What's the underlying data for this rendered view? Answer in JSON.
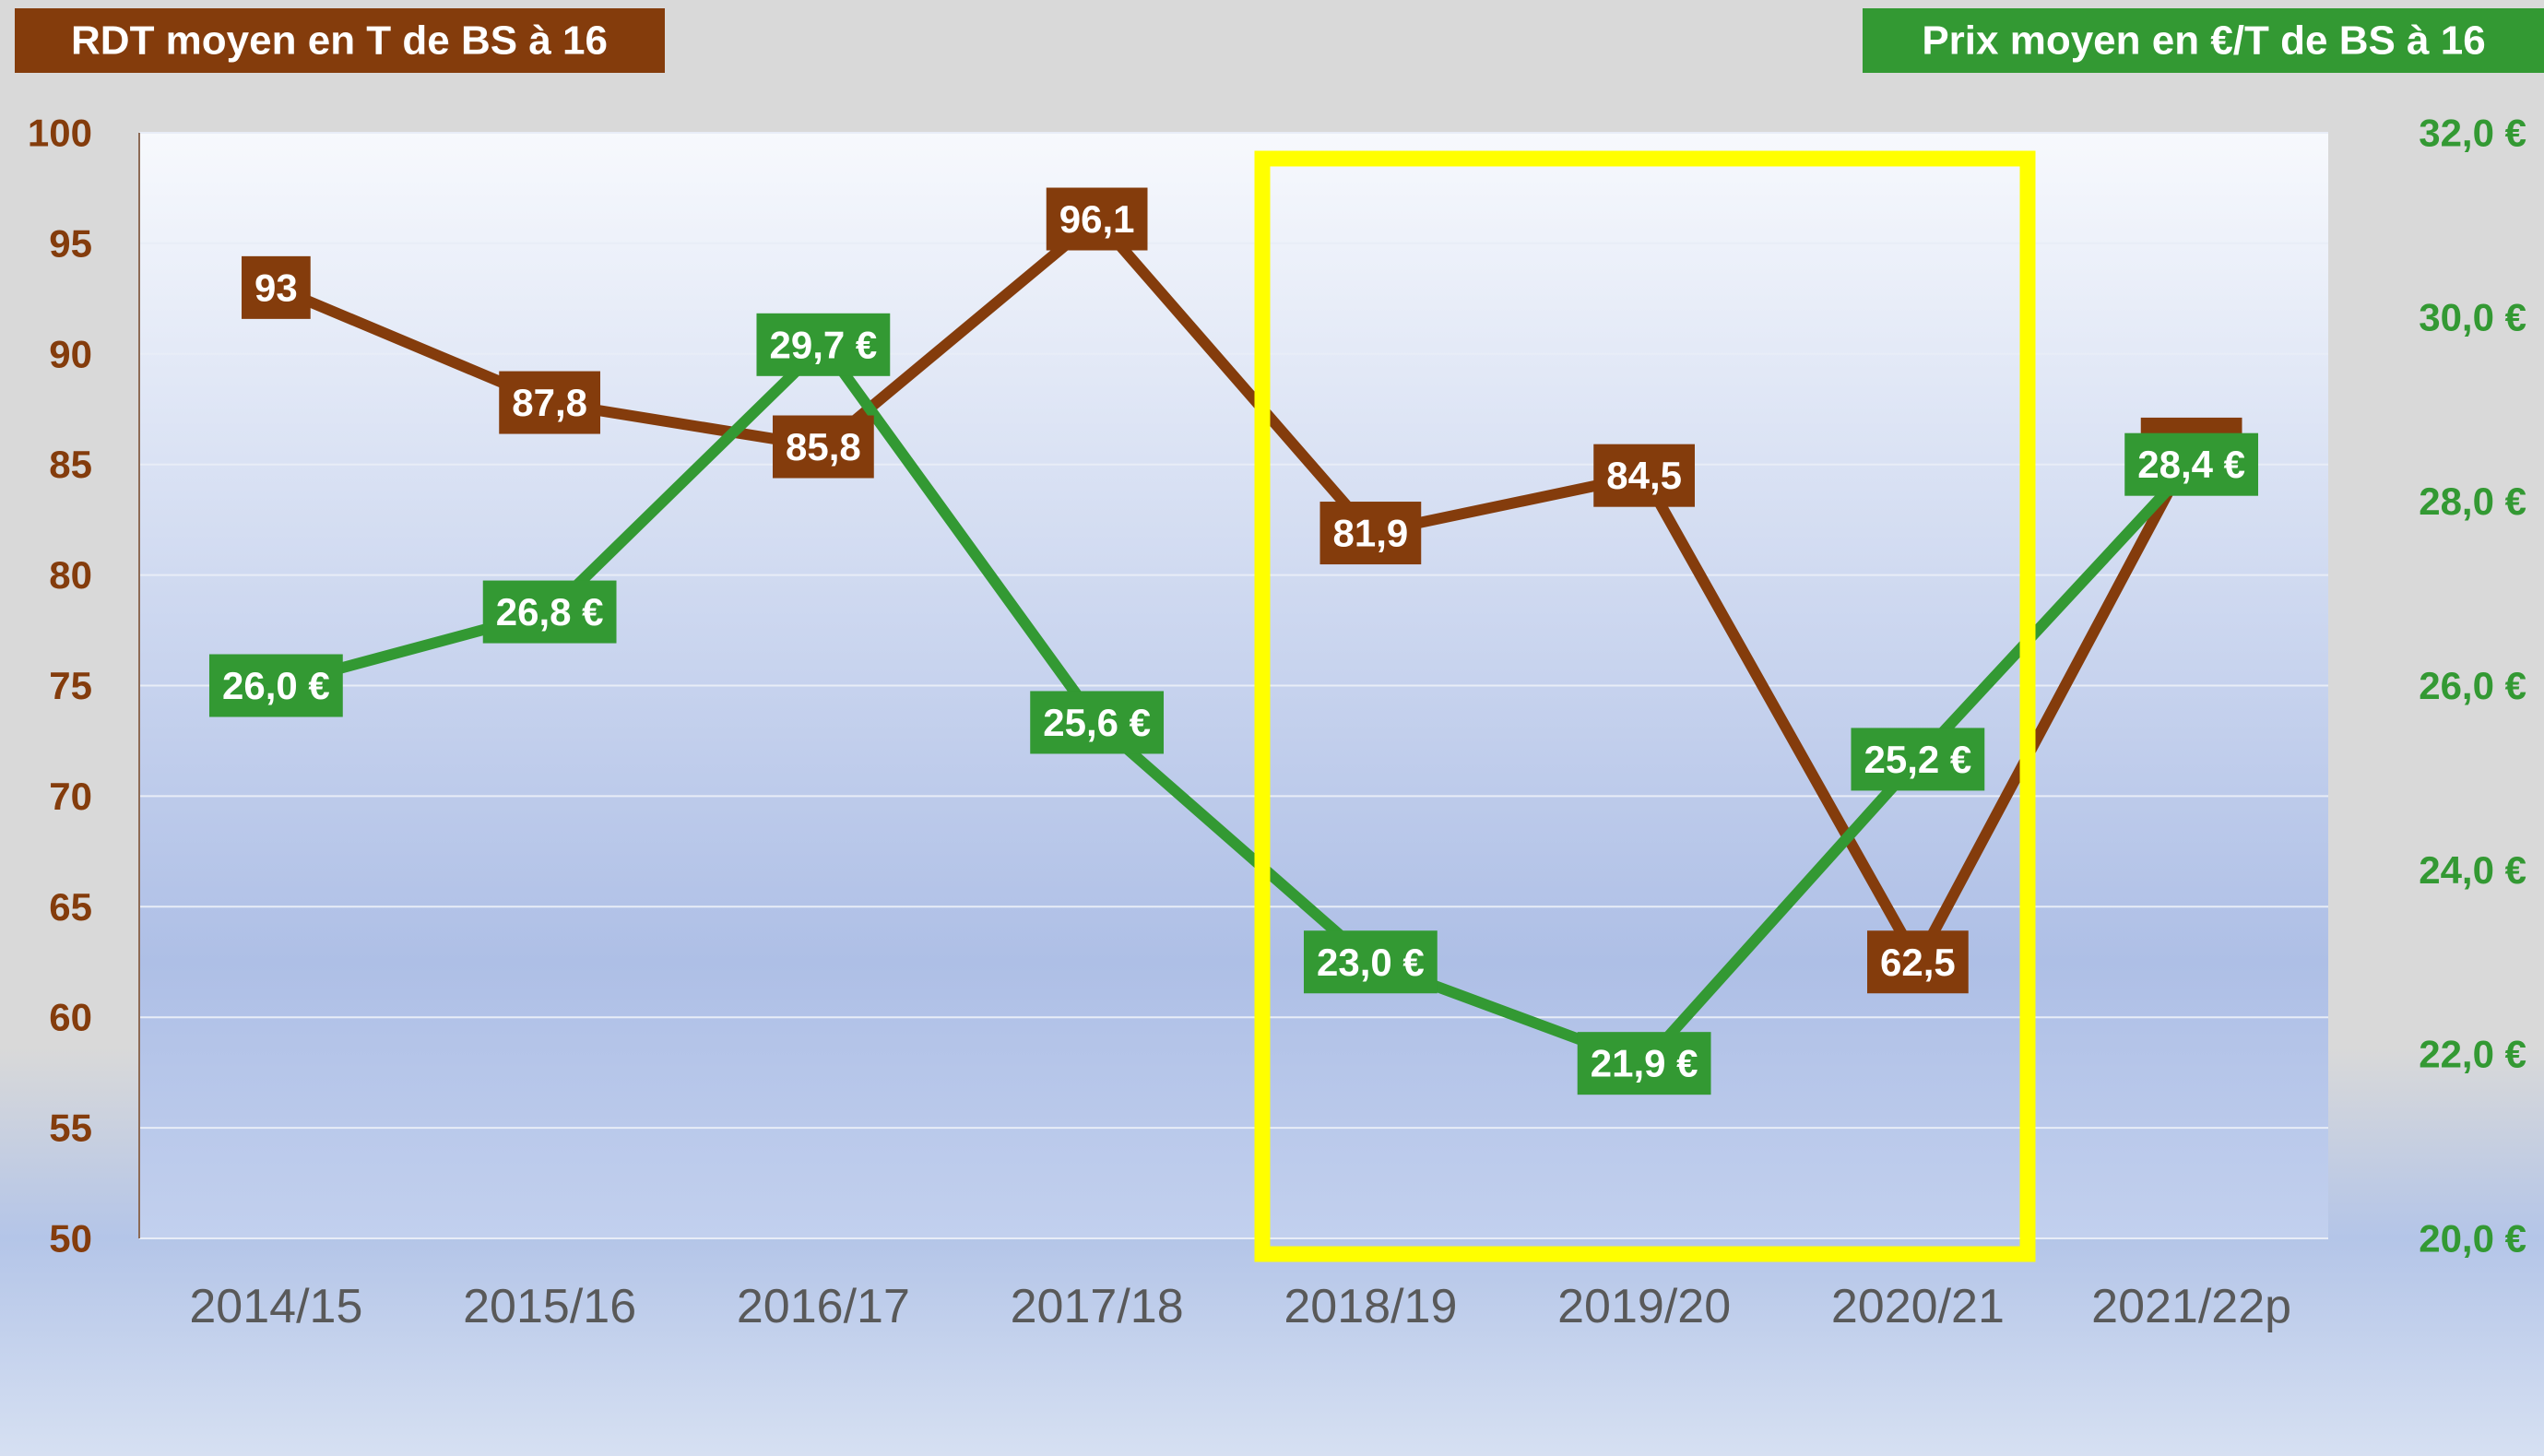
{
  "chart_data": {
    "type": "line",
    "y_label": "RDT moyen en T de BS à 16",
    "y2_label": "Prix moyen en €/T de BS à 16",
    "categories": [
      "2014/15",
      "2015/16",
      "2016/17",
      "2017/18",
      "2018/19",
      "2019/20",
      "2020/21",
      "2021/22p"
    ],
    "series": [
      {
        "name": "RDT moyen en T de BS à 16",
        "color": "#843c0c",
        "axis": "y",
        "values": [
          93,
          87.8,
          85.8,
          96.1,
          81.9,
          84.5,
          62.5,
          85.7
        ],
        "value_labels": [
          "93",
          "87,8",
          "85,8",
          "96,1",
          "81,9",
          "84,5",
          "62,5",
          "85,7"
        ]
      },
      {
        "name": "Prix moyen en €/T de BS à 16",
        "color": "#339933",
        "axis": "y2",
        "values": [
          26.0,
          26.8,
          29.7,
          25.6,
          23.0,
          21.9,
          25.2,
          28.4
        ],
        "value_labels": [
          "26,0 €",
          "26,8 €",
          "29,7 €",
          "25,6 €",
          "23,0 €",
          "21,9 €",
          "25,2 €",
          "28,4 €"
        ]
      }
    ],
    "ylim": [
      50,
      100
    ],
    "yticks": [
      50,
      55,
      60,
      65,
      70,
      75,
      80,
      85,
      90,
      95,
      100
    ],
    "y2lim": [
      20,
      32
    ],
    "y2ticks": [
      {
        "value": 20,
        "label": "20,0 €"
      },
      {
        "value": 22,
        "label": "22,0 €"
      },
      {
        "value": 24,
        "label": "24,0 €"
      },
      {
        "value": 26,
        "label": "26,0 €"
      },
      {
        "value": 28,
        "label": "28,0 €"
      },
      {
        "value": 30,
        "label": "30,0 €"
      },
      {
        "value": 32,
        "label": "32,0 €"
      }
    ],
    "grid": true
  }
}
